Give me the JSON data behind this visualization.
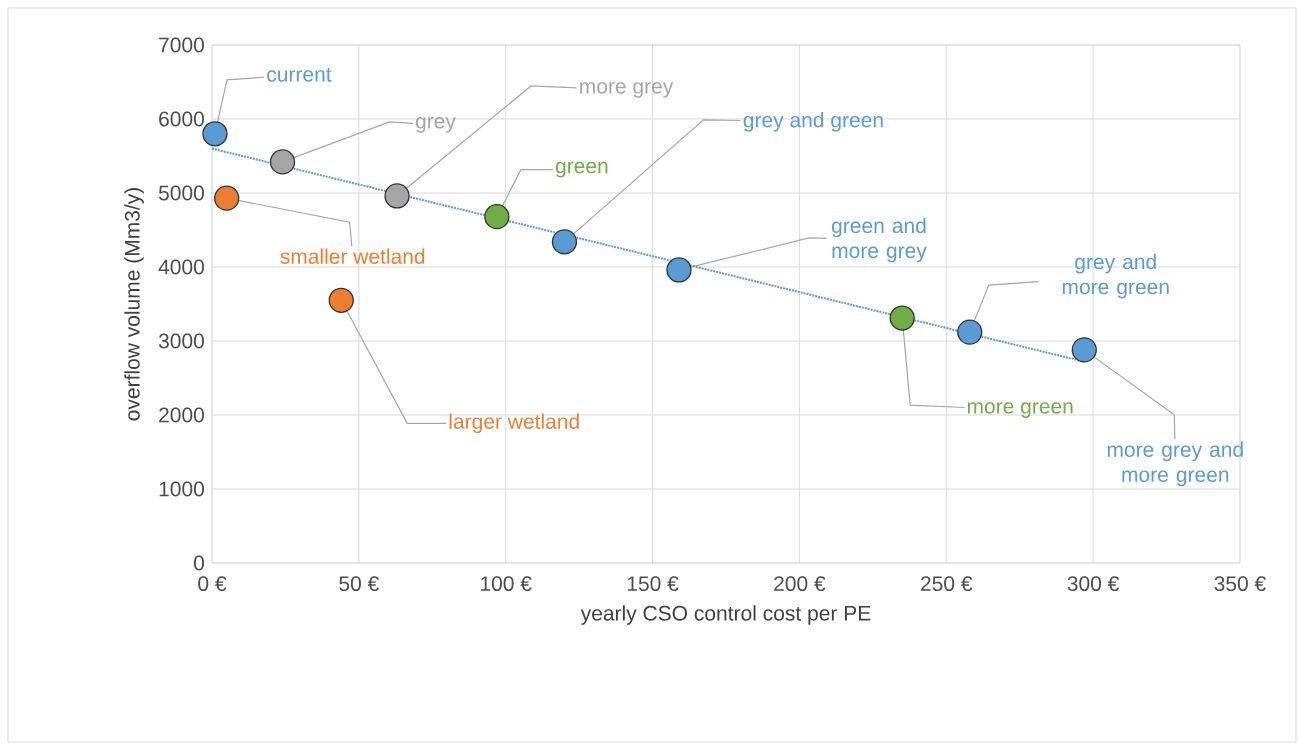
{
  "chart_data": {
    "type": "scatter",
    "xlabel": "yearly CSO control cost per PE",
    "ylabel": "overflow volume (Mm3/y)",
    "xlim": [
      0,
      350
    ],
    "ylim": [
      0,
      7000
    ],
    "xticks": [
      {
        "value": 0,
        "label": "0 €"
      },
      {
        "value": 50,
        "label": "50 €"
      },
      {
        "value": 100,
        "label": "100 €"
      },
      {
        "value": 150,
        "label": "150 €"
      },
      {
        "value": 200,
        "label": "200 €"
      },
      {
        "value": 250,
        "label": "250 €"
      },
      {
        "value": 300,
        "label": "300 €"
      },
      {
        "value": 350,
        "label": "350 €"
      }
    ],
    "yticks": [
      0,
      1000,
      2000,
      3000,
      4000,
      5000,
      6000,
      7000
    ],
    "grid": true,
    "series": [
      {
        "type": "line",
        "color": "#5b9bd5",
        "line_style": "dotted",
        "marker": "none",
        "x": [
          0,
          297
        ],
        "values": [
          5600,
          2720
        ]
      },
      {
        "color": "#5b9bd5",
        "marker": "circle",
        "x": [
          1,
          120,
          159,
          258,
          297
        ],
        "values": [
          5800,
          4340,
          3960,
          3120,
          2880
        ]
      },
      {
        "color": "#a5a5a5",
        "marker": "circle",
        "x": [
          24,
          63
        ],
        "values": [
          5420,
          4960
        ]
      },
      {
        "color": "#70ad47",
        "marker": "circle",
        "x": [
          97,
          235
        ],
        "values": [
          4680,
          3310
        ]
      },
      {
        "color": "#ed7d31",
        "marker": "circle",
        "x": [
          5,
          44
        ],
        "values": [
          4930,
          3550
        ]
      }
    ],
    "annotations": [
      {
        "text": "current",
        "x": 1,
        "y": 5800
      },
      {
        "text": "grey",
        "x": 24,
        "y": 5420
      },
      {
        "text": "more grey",
        "x": 63,
        "y": 4960
      },
      {
        "text": "green",
        "x": 97,
        "y": 4680
      },
      {
        "text": "grey and green",
        "x": 120,
        "y": 4340
      },
      {
        "text": "green and more grey",
        "x": 159,
        "y": 3960
      },
      {
        "text": "more green",
        "x": 235,
        "y": 3310
      },
      {
        "text": "grey and more green",
        "x": 258,
        "y": 3120
      },
      {
        "text": "more grey and more green",
        "x": 297,
        "y": 2880
      },
      {
        "text": "smaller wetland",
        "x": 5,
        "y": 4930
      },
      {
        "text": "larger wetland",
        "x": 44,
        "y": 3550
      }
    ]
  }
}
